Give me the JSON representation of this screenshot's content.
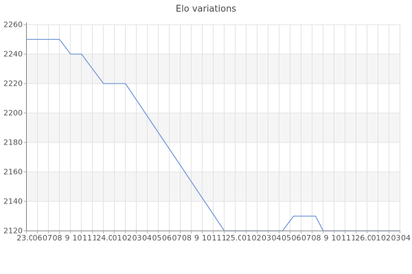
{
  "title": "Elo variations",
  "chart_data": {
    "type": "line",
    "title": "Elo variations",
    "xlabel": "",
    "ylabel": "",
    "ylim": [
      2120,
      2260
    ],
    "y_ticks": [
      2260,
      2240,
      2220,
      2200,
      2180,
      2160,
      2140,
      2120
    ],
    "x_tick_labels": [
      "23.06",
      "06",
      "07",
      "08",
      "9",
      "10",
      "11",
      "12",
      "24.06",
      "01",
      "02",
      "03",
      "04",
      "05",
      "06",
      "07",
      "08",
      "9",
      "10",
      "11",
      "12",
      "25.06",
      "01",
      "02",
      "03",
      "04",
      "05",
      "06",
      "07",
      "08",
      "9",
      "10",
      "11",
      "12",
      "26.06",
      "01",
      "02",
      "03",
      "04"
    ],
    "date_labels": [
      "23.06",
      "24.06",
      "25.06",
      "26.06"
    ],
    "grid": true,
    "legend_position": "none",
    "series": [
      {
        "name": "Elo",
        "points": [
          [
            0,
            2250
          ],
          [
            3,
            2250
          ],
          [
            4,
            2240
          ],
          [
            5,
            2240
          ],
          [
            7,
            2220
          ],
          [
            9,
            2220
          ],
          [
            18,
            2120
          ],
          [
            23.3,
            2120
          ],
          [
            24.3,
            2130
          ],
          [
            26.3,
            2130
          ],
          [
            27,
            2120
          ],
          [
            34,
            2120
          ]
        ]
      }
    ]
  },
  "colors": {
    "line": "#7296d8",
    "band": "#f5f5f5",
    "gridline": "#e2e2e2",
    "axis": "#7f7f7f",
    "tick": "#aaaaaa",
    "label_text": "#555555",
    "title_text": "#4a4a4a",
    "background": "#ffffff"
  }
}
